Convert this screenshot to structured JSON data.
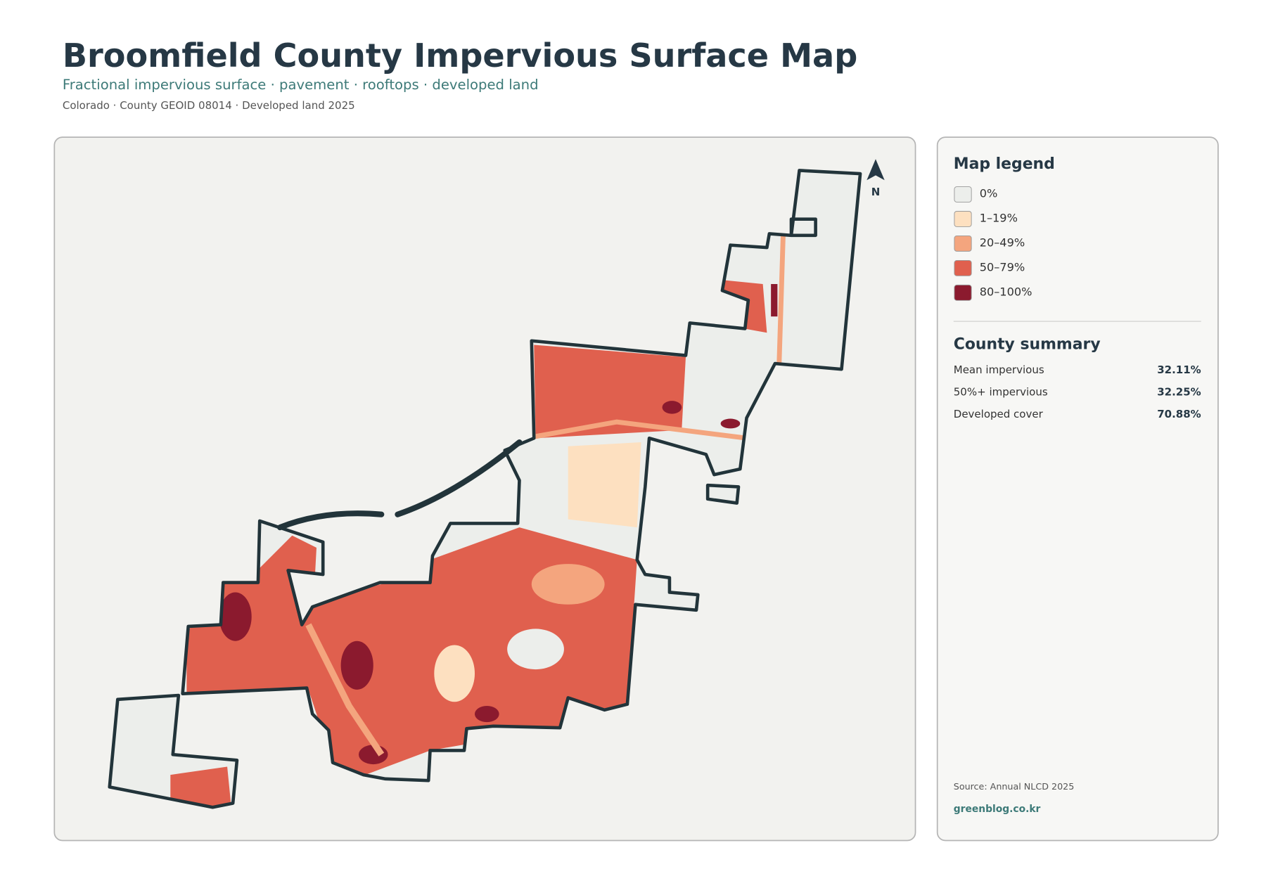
{
  "header": {
    "title": "Broomfield County Impervious Surface Map",
    "subtitle": "Fractional impervious surface · pavement · rooftops · developed land",
    "meta": "Colorado · County GEOID 08014 · Developed land 2025"
  },
  "map": {
    "north_label": "N"
  },
  "legend": {
    "title": "Map legend",
    "items": [
      {
        "label": "0%",
        "color": "#eceeeb"
      },
      {
        "label": "1–19%",
        "color": "#fde0c0"
      },
      {
        "label": "20–49%",
        "color": "#f4a57e"
      },
      {
        "label": "50–79%",
        "color": "#e0604e"
      },
      {
        "label": "80–100%",
        "color": "#8b1a2e"
      }
    ]
  },
  "summary": {
    "title": "County summary",
    "rows": [
      {
        "label": "Mean impervious",
        "value": "32.11%"
      },
      {
        "label": "50%+ impervious",
        "value": "32.25%"
      },
      {
        "label": "Developed cover",
        "value": "70.88%"
      }
    ]
  },
  "source": "Source: Annual NLCD 2025",
  "credit": "greenblog.co.kr"
}
